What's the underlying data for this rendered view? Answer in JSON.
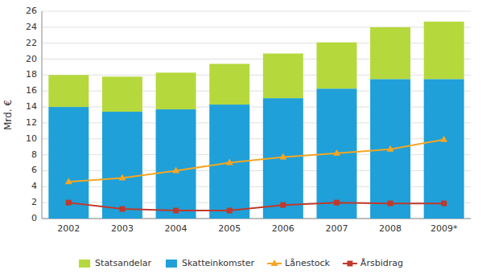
{
  "chart_data": {
    "type": "bar",
    "stacked": true,
    "categories": [
      "2002",
      "2003",
      "2004",
      "2005",
      "2006",
      "2007",
      "2008",
      "2009*"
    ],
    "series": [
      {
        "name": "Skatteinkomster",
        "type": "bar",
        "color": "#1fa0d8",
        "values": [
          14.0,
          13.4,
          13.7,
          14.3,
          15.1,
          16.3,
          17.5,
          17.5
        ]
      },
      {
        "name": "Statsandelar",
        "type": "bar",
        "color": "#b5d93c",
        "values": [
          4.0,
          4.4,
          4.6,
          5.1,
          5.6,
          5.8,
          6.5,
          7.2
        ]
      },
      {
        "name": "Lånestock",
        "type": "line",
        "color": "#f5a623",
        "marker": "triangle",
        "values": [
          4.6,
          5.1,
          6.0,
          7.0,
          7.7,
          8.2,
          8.7,
          9.9
        ]
      },
      {
        "name": "Årsbidrag",
        "type": "line",
        "color": "#c0392b",
        "marker": "square",
        "values": [
          2.0,
          1.2,
          1.0,
          1.0,
          1.7,
          2.0,
          1.9,
          1.9
        ]
      }
    ],
    "ylabel": "Mrd. €",
    "ylim": [
      0,
      26
    ],
    "yticks": [
      0,
      2,
      4,
      6,
      8,
      10,
      12,
      14,
      16,
      18,
      20,
      22,
      24,
      26
    ],
    "grid": true,
    "legend": "bottom"
  }
}
